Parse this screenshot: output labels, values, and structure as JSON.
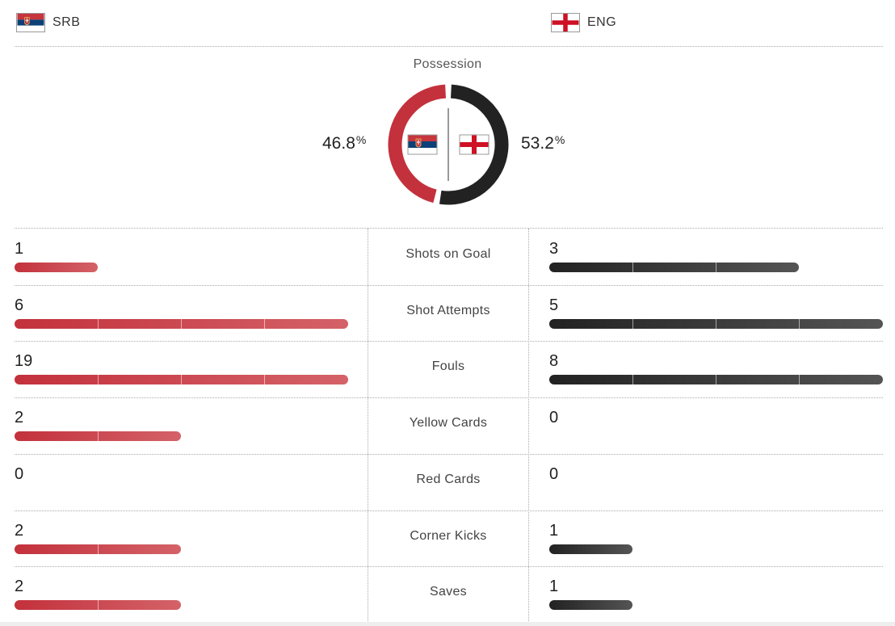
{
  "teams": {
    "home": {
      "code": "SRB",
      "flag_icon": "serbia-flag-icon",
      "color": "#c3313c"
    },
    "away": {
      "code": "ENG",
      "flag_icon": "england-flag-icon",
      "color": "#222222"
    }
  },
  "possession": {
    "title": "Possession",
    "home_value": "46.8",
    "away_value": "53.2",
    "unit": "%",
    "home_fraction": 0.468,
    "away_fraction": 0.532
  },
  "stats": [
    {
      "label": "Shots on Goal",
      "home": "1",
      "away": "3"
    },
    {
      "label": "Shot Attempts",
      "home": "6",
      "away": "5"
    },
    {
      "label": "Fouls",
      "home": "19",
      "away": "8"
    },
    {
      "label": "Yellow Cards",
      "home": "2",
      "away": "0"
    },
    {
      "label": "Red Cards",
      "home": "0",
      "away": "0"
    },
    {
      "label": "Corner Kicks",
      "home": "2",
      "away": "1"
    },
    {
      "label": "Saves",
      "home": "2",
      "away": "1"
    }
  ],
  "bar_scale": {
    "units_per_segment": 1,
    "max_segments": 4
  }
}
